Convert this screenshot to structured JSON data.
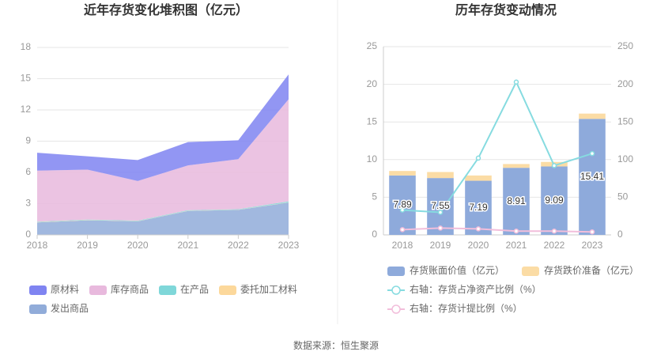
{
  "chart_data": [
    {
      "type": "area",
      "title": "近年存货变化堆积图（亿元）",
      "categories": [
        "2018",
        "2019",
        "2020",
        "2021",
        "2022",
        "2023"
      ],
      "series": [
        {
          "name": "原材料",
          "color": "#7f84f1",
          "values": [
            1.72,
            1.28,
            2.02,
            2.24,
            1.82,
            2.39
          ]
        },
        {
          "name": "库存商品",
          "color": "#e8b9dd",
          "values": [
            4.9,
            4.8,
            3.8,
            4.3,
            4.8,
            9.8
          ]
        },
        {
          "name": "在产品",
          "color": "#7fd7d9",
          "values": [
            0.05,
            0.05,
            0.05,
            0.05,
            0.05,
            0.1
          ]
        },
        {
          "name": "委托加工材料",
          "color": "#fcd89b",
          "values": [
            0.02,
            0.02,
            0.02,
            0.02,
            0.02,
            0.02
          ]
        },
        {
          "name": "发出商品",
          "color": "#91acd9",
          "values": [
            1.2,
            1.4,
            1.3,
            2.3,
            2.4,
            3.1
          ]
        }
      ],
      "ylim": [
        0,
        18
      ],
      "yticks": [
        0,
        3,
        6,
        9,
        12,
        15,
        18
      ],
      "grid": true
    },
    {
      "type": "bar",
      "title": "历年存货变动情况",
      "categories": [
        "2018",
        "2019",
        "2020",
        "2021",
        "2022",
        "2023"
      ],
      "series": [
        {
          "name": "存货账面价值（亿元）",
          "color": "#8eaadb",
          "values": [
            7.89,
            7.55,
            7.19,
            8.91,
            9.09,
            15.41
          ],
          "labels": true
        },
        {
          "name": "存货跌价准备（亿元）",
          "color": "#fbdca5",
          "values": [
            0.6,
            0.8,
            0.7,
            0.5,
            0.6,
            0.7
          ]
        },
        {
          "name": "右轴：存货占净资产比例（%）",
          "type": "line",
          "axis": "y2",
          "color": "#86dbe0",
          "values": [
            33,
            30,
            102,
            203,
            92,
            108
          ]
        },
        {
          "name": "右轴：存货计提比例（%）",
          "type": "line",
          "axis": "y2",
          "color": "#f2bedb",
          "values": [
            7,
            9,
            8,
            5,
            5,
            4
          ]
        }
      ],
      "ylim": [
        0,
        25
      ],
      "yticks": [
        0,
        5,
        10,
        15,
        20,
        25
      ],
      "y2lim": [
        0,
        250
      ],
      "y2ticks": [
        0,
        50,
        100,
        150,
        200,
        250
      ],
      "grid": true
    }
  ],
  "source": "数据来源：恒生聚源"
}
